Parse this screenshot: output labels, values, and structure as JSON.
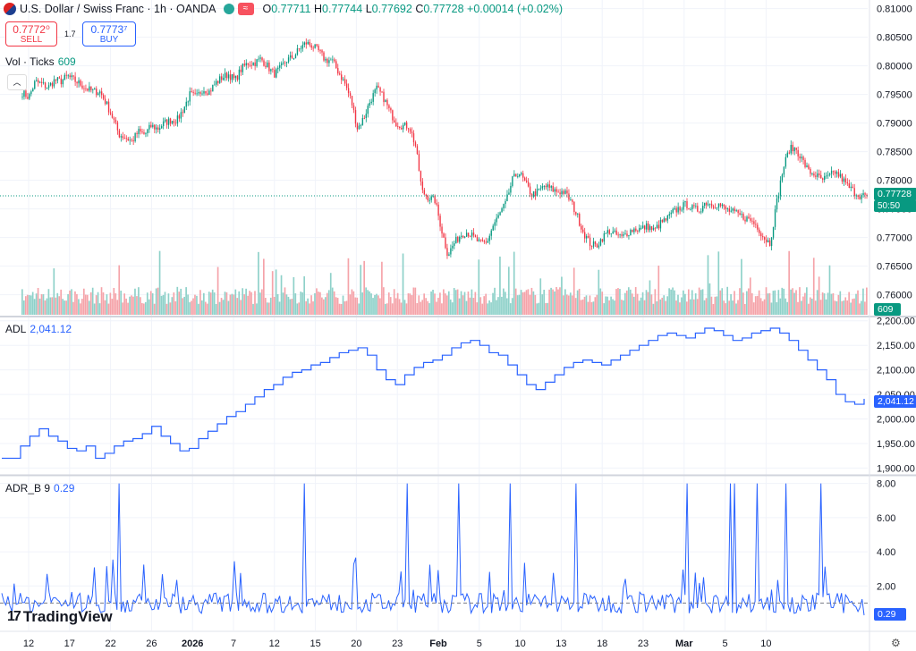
{
  "header": {
    "title": "U.S. Dollar / Swiss Franc · 1h · OANDA",
    "open_label": "O",
    "open": "0.77711",
    "high_label": "H",
    "high": "0.77744",
    "low_label": "L",
    "low": "0.77692",
    "close_label": "C",
    "close": "0.77728",
    "change": "+0.00014 (+0.02%)"
  },
  "trade": {
    "sell_price": "0.7772⁰",
    "sell_label": "SELL",
    "spread": "1.7",
    "buy_price": "0.7773⁷",
    "buy_label": "BUY"
  },
  "labels": {
    "vol_name": "Vol · Ticks",
    "vol_value": "609",
    "adl_name": "ADL",
    "adl_value": "2,041.12",
    "adr_name": "ADR_B 9",
    "adr_value": "0.29",
    "price_current": "0.77728",
    "countdown": "50:50",
    "vol_current": "609",
    "adl_current": "2,041.12",
    "adr_current": "0.29",
    "logo": "TradingView"
  },
  "colors": {
    "up": "#089981",
    "down": "#f23645",
    "line": "#2962ff",
    "grid": "#f0f3fa"
  },
  "chart_data": [
    {
      "type": "candlestick",
      "title": "U.S. Dollar / Swiss Franc · 1h · OANDA",
      "y_ticks": [
        0.76,
        0.765,
        0.77,
        0.775,
        0.78,
        0.785,
        0.79,
        0.795,
        0.8,
        0.805,
        0.81
      ],
      "y_tick_labels": [
        "0.76000",
        "0.76500",
        "0.77000",
        "0.77500",
        "0.78000",
        "0.78500",
        "0.79000",
        "0.79500",
        "0.80000",
        "0.80500",
        "0.81000"
      ],
      "ylim": [
        0.7565,
        0.8115
      ],
      "x_tick_labels": [
        "12",
        "17",
        "22",
        "26",
        "2026",
        "7",
        "12",
        "15",
        "20",
        "23",
        "Feb",
        "5",
        "10",
        "13",
        "18",
        "23",
        "Mar",
        "5",
        "10"
      ],
      "close_path": [
        [
          0.7953,
          0.7945,
          0.7972,
          0.7968,
          0.7962,
          0.7975,
          0.7973,
          0.7982,
          0.7975,
          0.7968,
          0.796,
          0.7955
        ],
        [
          0.7955,
          0.7935,
          0.791,
          0.788,
          0.7875,
          0.7868,
          0.7885,
          0.788,
          0.7895,
          0.789,
          0.79,
          0.7905
        ],
        [
          0.7905,
          0.7925,
          0.795,
          0.7945,
          0.796,
          0.7955,
          0.797,
          0.798,
          0.7985,
          0.7975,
          0.7995,
          0.8005
        ],
        [
          0.8005,
          0.8012,
          0.8,
          0.7985,
          0.7995,
          0.801,
          0.8015,
          0.803,
          0.804,
          0.8035,
          0.8025,
          0.801
        ],
        [
          0.801,
          0.799,
          0.797,
          0.794,
          0.789,
          0.791,
          0.794,
          0.796,
          0.7945,
          0.792,
          0.79,
          0.7895
        ],
        [
          0.7895,
          0.786,
          0.778,
          0.777,
          0.7765,
          0.7715,
          0.767,
          0.769,
          0.7705,
          0.771,
          0.77,
          0.769
        ],
        [
          0.769,
          0.772,
          0.774,
          0.776,
          0.78,
          0.7815,
          0.7795,
          0.7775,
          0.778,
          0.779,
          0.7785,
          0.778
        ],
        [
          0.778,
          0.7765,
          0.774,
          0.771,
          0.769,
          0.7685,
          0.77,
          0.7712,
          0.7705,
          0.77,
          0.771,
          0.7715
        ],
        [
          0.7715,
          0.772,
          0.7712,
          0.7725,
          0.7732,
          0.7745,
          0.7752,
          0.7758,
          0.775,
          0.7748,
          0.7762,
          0.7758
        ],
        [
          0.7758,
          0.775,
          0.7745,
          0.774,
          0.7735,
          0.773,
          0.772,
          0.77,
          0.769,
          0.776,
          0.782,
          0.7855
        ],
        [
          0.7855,
          0.7835,
          0.7815,
          0.781,
          0.78,
          0.7805,
          0.7815,
          0.7805,
          0.779,
          0.778,
          0.7773,
          0.7773
        ]
      ],
      "volume_max": 1500,
      "last_close": 0.77728,
      "last_volume": 609
    },
    {
      "type": "line",
      "name": "ADL",
      "y_ticks": [
        1900,
        1950,
        2000,
        2050,
        2100,
        2150,
        2200
      ],
      "y_tick_labels": [
        "1,900.00",
        "1,950.00",
        "2,000.00",
        "2,050.00",
        "2,100.00",
        "2,150.00",
        "2,200.00"
      ],
      "ylim": [
        1888,
        2205
      ],
      "values": [
        1920,
        1920,
        1945,
        1965,
        1980,
        1965,
        1955,
        1940,
        1935,
        1945,
        1920,
        1930,
        1945,
        1955,
        1960,
        1970,
        1985,
        1965,
        1950,
        1935,
        1940,
        1960,
        1975,
        1990,
        2005,
        2015,
        2030,
        2045,
        2060,
        2070,
        2085,
        2095,
        2100,
        2110,
        2115,
        2125,
        2135,
        2140,
        2145,
        2130,
        2100,
        2080,
        2070,
        2090,
        2105,
        2115,
        2120,
        2130,
        2145,
        2155,
        2160,
        2150,
        2135,
        2130,
        2110,
        2090,
        2070,
        2060,
        2075,
        2090,
        2105,
        2115,
        2120,
        2115,
        2110,
        2120,
        2130,
        2140,
        2150,
        2160,
        2170,
        2175,
        2170,
        2165,
        2175,
        2185,
        2180,
        2170,
        2160,
        2165,
        2175,
        2180,
        2185,
        2175,
        2160,
        2140,
        2120,
        2100,
        2080,
        2050,
        2035,
        2030,
        2041.12
      ],
      "last_value": 2041.12
    },
    {
      "type": "line",
      "name": "ADR_B 9",
      "y_ticks": [
        2,
        4,
        6,
        8
      ],
      "y_tick_labels": [
        "2.00",
        "4.00",
        "6.00",
        "8.00"
      ],
      "ylim": [
        -0.6,
        8.4
      ],
      "baseline": 1.0,
      "spike_positions": [
        0.135,
        0.35,
        0.47,
        0.53,
        0.59,
        0.665,
        0.795,
        0.845,
        0.85,
        0.875,
        0.91,
        0.95
      ],
      "spike_height": 8.0,
      "medium_spike_height": 3.5,
      "last_value": 0.29
    }
  ]
}
